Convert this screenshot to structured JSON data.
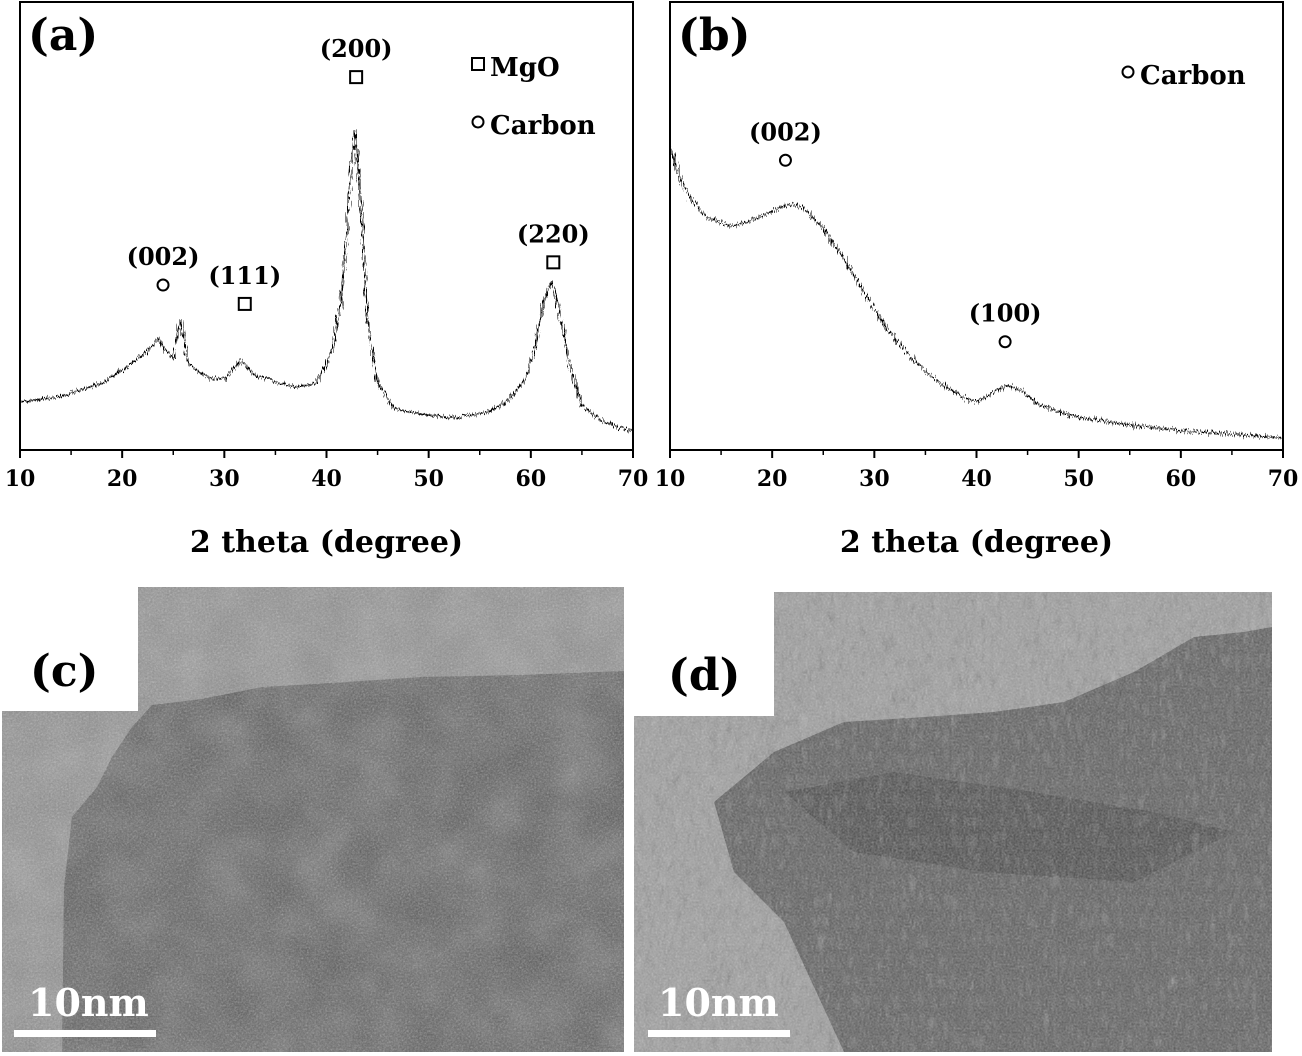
{
  "chart_data": [
    {
      "panel_label": "(a)",
      "type": "line",
      "xlabel": "2 theta (degree)",
      "xlim": [
        10,
        70
      ],
      "xticks": [
        10,
        20,
        30,
        40,
        50,
        60,
        70
      ],
      "grid": false,
      "legend": [
        {
          "marker": "square",
          "label": "MgO"
        },
        {
          "marker": "circle",
          "label": "Carbon"
        }
      ],
      "legend_placement": "top-right",
      "series": [
        {
          "x": [
            10,
            14,
            18,
            20,
            22,
            23,
            23.5,
            24,
            25,
            25.7,
            26.5,
            27.5,
            28.5,
            30,
            31.5,
            32,
            33,
            35,
            37,
            39,
            40.5,
            41.5,
            42.2,
            42.8,
            43.4,
            44,
            45,
            46.5,
            48,
            50,
            52,
            54,
            56,
            58,
            59.5,
            60.5,
            61.3,
            62,
            62.8,
            63.8,
            65,
            67,
            70
          ],
          "y": [
            0.1,
            0.115,
            0.15,
            0.185,
            0.225,
            0.25,
            0.27,
            0.245,
            0.215,
            0.315,
            0.2,
            0.18,
            0.165,
            0.16,
            0.21,
            0.2,
            0.17,
            0.155,
            0.14,
            0.15,
            0.23,
            0.38,
            0.64,
            0.82,
            0.62,
            0.32,
            0.15,
            0.085,
            0.075,
            0.065,
            0.06,
            0.065,
            0.075,
            0.11,
            0.165,
            0.26,
            0.37,
            0.42,
            0.34,
            0.2,
            0.09,
            0.05,
            0.02
          ]
        }
      ],
      "annotations": [
        {
          "text": "(002)",
          "x": 24.0,
          "y": 0.41,
          "marker": "circle"
        },
        {
          "text": "(111)",
          "x": 32.0,
          "y": 0.36,
          "marker": "square"
        },
        {
          "text": "(200)",
          "x": 42.9,
          "y": 0.96,
          "marker": "square"
        },
        {
          "text": "(220)",
          "x": 62.2,
          "y": 0.47,
          "marker": "square"
        }
      ]
    },
    {
      "panel_label": "(b)",
      "type": "line",
      "xlabel": "2 theta (degree)",
      "xlim": [
        10,
        70
      ],
      "xticks": [
        10,
        20,
        30,
        40,
        50,
        60,
        70
      ],
      "grid": false,
      "legend": [
        {
          "marker": "circle",
          "label": "Carbon"
        }
      ],
      "legend_placement": "top-right",
      "series": [
        {
          "x": [
            10,
            11,
            12,
            13,
            14,
            15,
            16,
            18,
            20,
            21.5,
            23,
            25,
            27,
            29,
            31,
            33,
            35,
            37,
            38.5,
            40,
            41.5,
            43,
            44.5,
            46,
            48,
            50,
            55,
            60,
            65,
            70
          ],
          "y": [
            0.78,
            0.69,
            0.64,
            0.605,
            0.585,
            0.575,
            0.565,
            0.58,
            0.605,
            0.625,
            0.615,
            0.56,
            0.48,
            0.39,
            0.305,
            0.235,
            0.18,
            0.14,
            0.115,
            0.1,
            0.125,
            0.145,
            0.13,
            0.095,
            0.075,
            0.06,
            0.04,
            0.025,
            0.015,
            0.005
          ]
        }
      ],
      "annotations": [
        {
          "text": "(002)",
          "x": 21.3,
          "y": 0.74,
          "marker": "circle"
        },
        {
          "text": "(100)",
          "x": 42.8,
          "y": 0.26,
          "marker": "circle"
        }
      ]
    }
  ],
  "tem_images": [
    {
      "panel_label": "(c)",
      "scale_label": "10nm"
    },
    {
      "panel_label": "(d)",
      "scale_label": "10nm"
    }
  ]
}
